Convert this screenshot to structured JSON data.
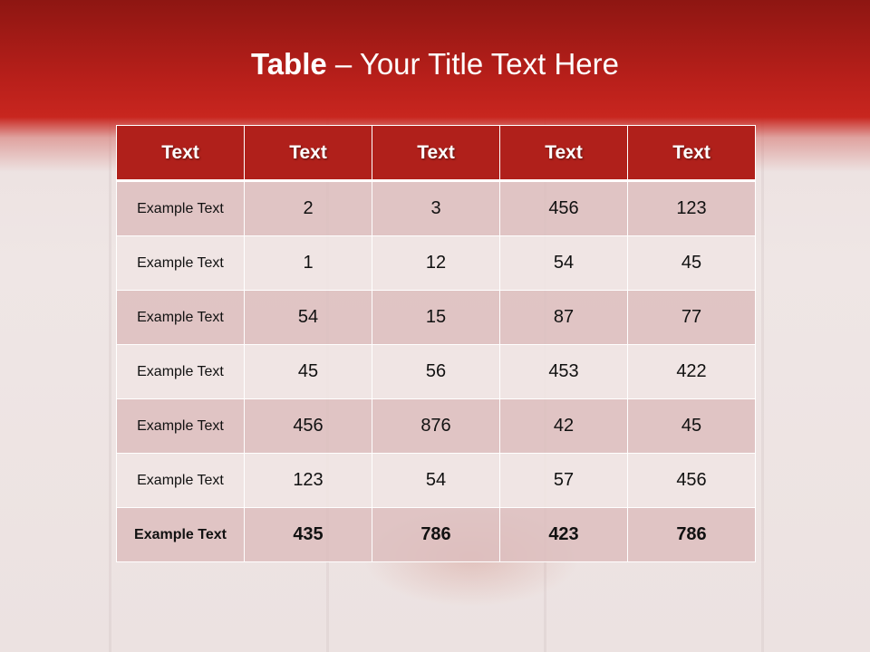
{
  "slide": {
    "title_bold": "Table",
    "title_rest": " – Your Title Text Here"
  },
  "table": {
    "headers": [
      "Text",
      "Text",
      "Text",
      "Text",
      "Text"
    ],
    "rows": [
      [
        "Example Text",
        "2",
        "3",
        "456",
        "123"
      ],
      [
        "Example Text",
        "1",
        "12",
        "54",
        "45"
      ],
      [
        "Example Text",
        "54",
        "15",
        "87",
        "77"
      ],
      [
        "Example Text",
        "45",
        "56",
        "453",
        "422"
      ],
      [
        "Example Text",
        "456",
        "876",
        "42",
        "45"
      ],
      [
        "Example Text",
        "123",
        "54",
        "57",
        "456"
      ],
      [
        "Example Text",
        "435",
        "786",
        "423",
        "786"
      ]
    ]
  },
  "colors": {
    "header": "#b0201b",
    "banner": "#b71f1a"
  }
}
